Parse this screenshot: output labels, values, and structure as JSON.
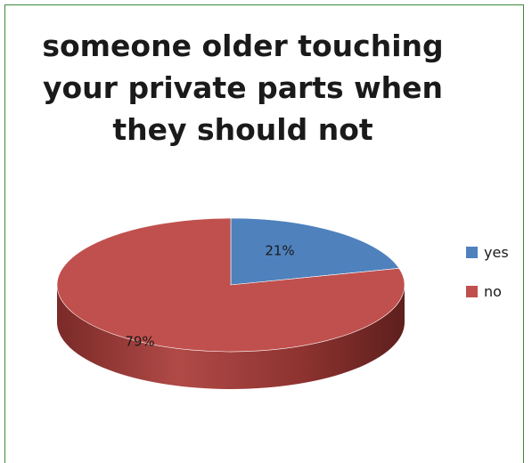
{
  "chart_data": {
    "type": "pie",
    "title_lines": [
      "someone older touching",
      "your private parts when",
      "they should not"
    ],
    "categories": [
      "yes",
      "no"
    ],
    "values": [
      21,
      79
    ],
    "labels": [
      "21%",
      "79%"
    ],
    "colors": [
      "#4f81bd",
      "#c0504d"
    ],
    "side_colors": [
      "#2f5281",
      "#7a2a28"
    ],
    "legend_position": "right"
  }
}
